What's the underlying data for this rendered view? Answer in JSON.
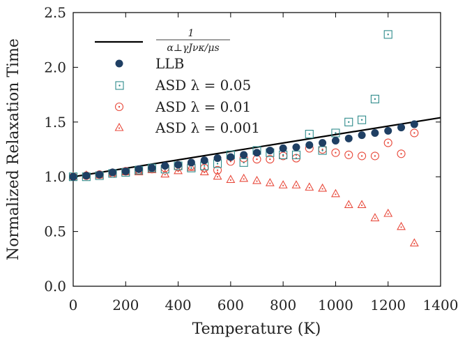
{
  "chart_data": {
    "type": "scatter",
    "xlabel": "Temperature (K)",
    "ylabel": "Normalized Relaxation Time",
    "xlim": [
      0,
      1400
    ],
    "ylim": [
      0,
      2.5
    ],
    "xticks": [
      "0",
      "200",
      "400",
      "600",
      "800",
      "1000",
      "1200",
      "1400"
    ],
    "yticks": [
      "0.0",
      "0.5",
      "1.0",
      "1.5",
      "2.0",
      "2.5"
    ],
    "grid": false,
    "legend_position": "top-left",
    "line": {
      "legend_numerator": "1",
      "legend_denominator": "α⊥γJνκ/μs",
      "color": "#000000",
      "x": [
        0,
        1400
      ],
      "y": [
        1.0,
        1.54
      ]
    },
    "series": [
      {
        "name": "LLB",
        "marker": "filled-circle",
        "color": "#1f3f63",
        "x": [
          0,
          50,
          100,
          150,
          200,
          250,
          300,
          350,
          400,
          450,
          500,
          550,
          600,
          650,
          700,
          750,
          800,
          850,
          900,
          950,
          1000,
          1050,
          1100,
          1150,
          1200,
          1250,
          1300
        ],
        "y": [
          1.0,
          1.01,
          1.02,
          1.04,
          1.05,
          1.07,
          1.08,
          1.1,
          1.11,
          1.13,
          1.15,
          1.17,
          1.18,
          1.2,
          1.22,
          1.24,
          1.26,
          1.27,
          1.29,
          1.31,
          1.33,
          1.35,
          1.38,
          1.4,
          1.42,
          1.45,
          1.48
        ]
      },
      {
        "name": "ASD λ = 0.05",
        "marker": "open-square",
        "color": "#2e8b8b",
        "x": [
          0,
          50,
          100,
          150,
          200,
          250,
          300,
          350,
          400,
          450,
          500,
          550,
          600,
          650,
          700,
          750,
          800,
          850,
          900,
          950,
          1000,
          1050,
          1100,
          1150,
          1200
        ],
        "y": [
          1.0,
          1.0,
          1.01,
          1.03,
          1.04,
          1.06,
          1.08,
          1.07,
          1.1,
          1.08,
          1.1,
          1.12,
          1.2,
          1.13,
          1.24,
          1.22,
          1.2,
          1.2,
          1.39,
          1.24,
          1.4,
          1.5,
          1.52,
          1.71,
          2.3
        ]
      },
      {
        "name": "ASD λ = 0.01",
        "marker": "open-circle",
        "color": "#e84a3c",
        "x": [
          0,
          50,
          100,
          150,
          200,
          250,
          300,
          350,
          400,
          450,
          500,
          550,
          600,
          650,
          700,
          750,
          800,
          850,
          900,
          950,
          1000,
          1050,
          1100,
          1150,
          1200,
          1250,
          1300
        ],
        "y": [
          1.0,
          1.01,
          1.02,
          1.03,
          1.05,
          1.06,
          1.07,
          1.08,
          1.09,
          1.1,
          1.08,
          1.06,
          1.14,
          1.17,
          1.16,
          1.16,
          1.19,
          1.17,
          1.26,
          1.25,
          1.22,
          1.2,
          1.19,
          1.19,
          1.31,
          1.21,
          1.4
        ]
      },
      {
        "name": "ASD λ = 0.001",
        "marker": "open-triangle",
        "color": "#e84a3c",
        "x": [
          0,
          50,
          100,
          150,
          200,
          250,
          300,
          350,
          400,
          450,
          500,
          550,
          600,
          650,
          700,
          750,
          800,
          850,
          900,
          950,
          1000,
          1050,
          1100,
          1150,
          1200,
          1250,
          1300
        ],
        "y": [
          1.0,
          1.01,
          1.01,
          1.03,
          1.04,
          1.04,
          1.06,
          1.02,
          1.05,
          1.08,
          1.04,
          1.0,
          0.97,
          0.98,
          0.96,
          0.94,
          0.92,
          0.92,
          0.9,
          0.89,
          0.84,
          0.74,
          0.74,
          0.62,
          0.66,
          0.54,
          0.39
        ]
      }
    ],
    "legend": {
      "llb": "LLB",
      "asd05": "ASD λ = 0.05",
      "asd01": "ASD λ = 0.01",
      "asd001": "ASD λ = 0.001"
    }
  }
}
